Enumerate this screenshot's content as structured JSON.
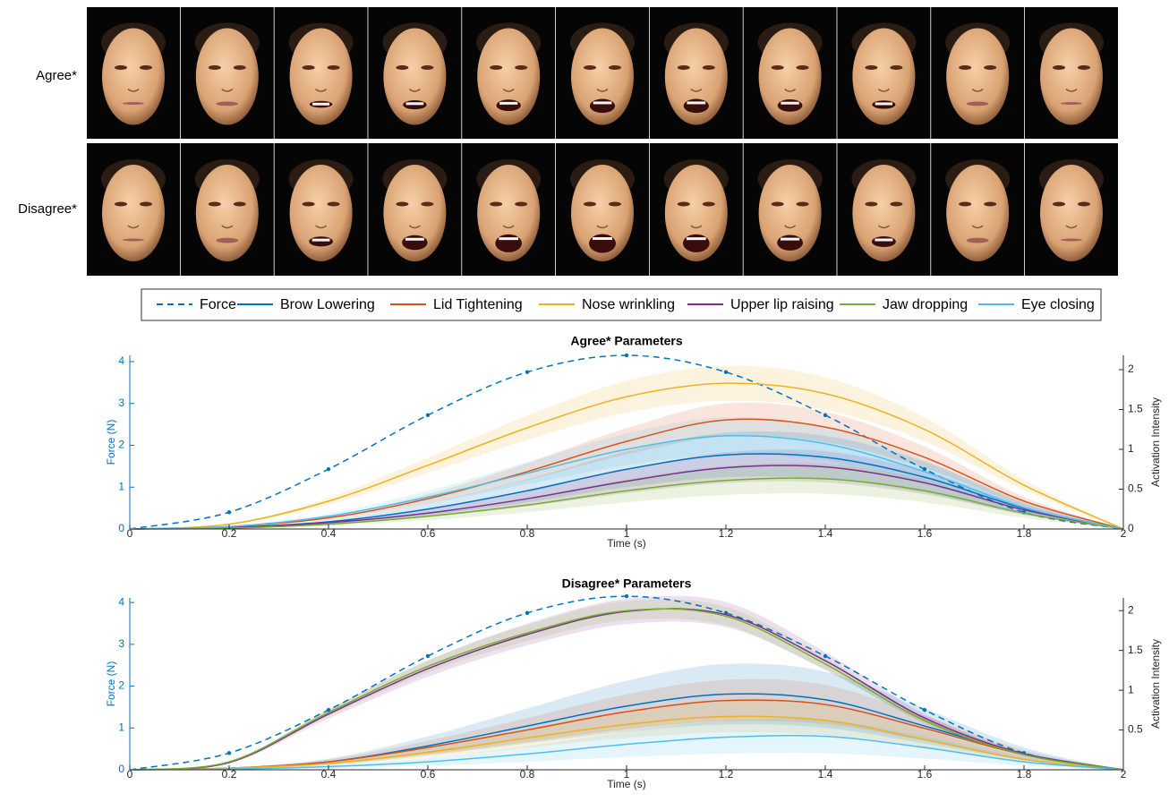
{
  "figure": {
    "row_labels": [
      "Agree*",
      "Disagree*"
    ]
  },
  "chart_data": [
    {
      "type": "line",
      "title": "Agree* Parameters",
      "xlabel": "Time (s)",
      "ylabel": "Force (N)",
      "y2label": "Activation Intensity",
      "x": [
        0,
        0.2,
        0.4,
        0.6,
        0.8,
        1,
        1.2,
        1.4,
        1.6,
        1.8,
        2
      ],
      "xlim": [
        0,
        2
      ],
      "xticks": [
        0,
        0.2,
        0.4,
        0.6,
        0.8,
        1,
        1.2,
        1.4,
        1.6,
        1.8,
        2
      ],
      "ylim": [
        0,
        4.15
      ],
      "yticks": [
        0,
        1,
        2,
        3,
        4
      ],
      "y2lim": [
        0,
        2.18
      ],
      "y2ticks": [
        0,
        0.5,
        1,
        1.5,
        2
      ],
      "series": [
        {
          "name": "Force",
          "color": "#0072BD",
          "style": "dashed",
          "values": [
            0,
            0.4,
            1.43,
            2.72,
            3.75,
            4.15,
            3.75,
            2.72,
            1.43,
            0.4,
            0
          ]
        },
        {
          "name": "Brow Lowering",
          "color": "#0072BD",
          "axis": "y2",
          "spread": 0.3,
          "values": [
            0,
            0.02,
            0.09,
            0.25,
            0.48,
            0.75,
            0.93,
            0.9,
            0.65,
            0.26,
            0
          ]
        },
        {
          "name": "Lid Tightening",
          "color": "#D95319",
          "axis": "y2",
          "spread": 0.15,
          "values": [
            0,
            0.03,
            0.14,
            0.38,
            0.72,
            1.1,
            1.37,
            1.28,
            0.9,
            0.35,
            0
          ]
        },
        {
          "name": "Nose wrinkling",
          "color": "#EDB120",
          "axis": "y2",
          "spread": 0.12,
          "values": [
            0,
            0.06,
            0.35,
            0.8,
            1.27,
            1.66,
            1.83,
            1.7,
            1.25,
            0.55,
            0
          ]
        },
        {
          "name": "Upper lip raising",
          "color": "#7E2F8E",
          "axis": "y2",
          "spread": 0.25,
          "values": [
            0,
            0.02,
            0.08,
            0.2,
            0.38,
            0.6,
            0.77,
            0.78,
            0.58,
            0.24,
            0
          ]
        },
        {
          "name": "Jaw dropping",
          "color": "#77AC30",
          "axis": "y2",
          "spread": 0.3,
          "values": [
            0,
            0.01,
            0.06,
            0.16,
            0.3,
            0.48,
            0.61,
            0.63,
            0.48,
            0.2,
            0
          ]
        },
        {
          "name": "Eye closing",
          "color": "#4DBEEE",
          "axis": "y2",
          "spread": 0.2,
          "values": [
            0,
            0.03,
            0.16,
            0.4,
            0.7,
            1.0,
            1.17,
            1.07,
            0.72,
            0.27,
            0
          ]
        }
      ]
    },
    {
      "type": "line",
      "title": "Disagree* Parameters",
      "xlabel": "Time (s)",
      "ylabel": "Force (N)",
      "y2label": "Activation Intensity",
      "x": [
        0,
        0.2,
        0.4,
        0.6,
        0.8,
        1,
        1.2,
        1.4,
        1.6,
        1.8,
        2
      ],
      "xlim": [
        0,
        2
      ],
      "xticks": [
        0,
        0.2,
        0.4,
        0.6,
        0.8,
        1,
        1.2,
        1.4,
        1.6,
        1.8,
        2
      ],
      "ylim": [
        0,
        4.11
      ],
      "yticks": [
        0,
        1,
        2,
        3,
        4
      ],
      "y2lim": [
        0,
        2.16
      ],
      "y2ticks": [
        0.5,
        1,
        1.5,
        2
      ],
      "series": [
        {
          "color": "#0072BD",
          "style": "dashed",
          "values": [
            0,
            0.4,
            1.43,
            2.72,
            3.75,
            4.15,
            3.75,
            2.72,
            1.43,
            0.4,
            0
          ]
        },
        {
          "color": "#0072BD",
          "axis": "y2",
          "spread": 0.4,
          "values": [
            0,
            0.02,
            0.1,
            0.3,
            0.55,
            0.8,
            0.95,
            0.88,
            0.55,
            0.2,
            0
          ]
        },
        {
          "color": "#D95319",
          "axis": "y2",
          "spread": 0.3,
          "values": [
            0,
            0.02,
            0.1,
            0.28,
            0.5,
            0.73,
            0.87,
            0.82,
            0.52,
            0.19,
            0
          ]
        },
        {
          "color": "#EDB120",
          "axis": "y2",
          "spread": 0.3,
          "values": [
            0,
            0.02,
            0.08,
            0.22,
            0.4,
            0.57,
            0.67,
            0.62,
            0.38,
            0.13,
            0
          ]
        },
        {
          "color": "#7E2F8E",
          "axis": "y2",
          "spread": 0.08,
          "values": [
            0,
            0.09,
            0.7,
            1.27,
            1.7,
            1.99,
            1.95,
            1.37,
            0.65,
            0.2,
            0
          ]
        },
        {
          "color": "#77AC30",
          "axis": "y2",
          "spread": 0.06,
          "values": [
            0,
            0.1,
            0.72,
            1.3,
            1.72,
            2.0,
            1.93,
            1.33,
            0.62,
            0.19,
            0
          ]
        },
        {
          "color": "#4DBEEE",
          "axis": "y2",
          "spread": 0.5,
          "values": [
            0,
            0.01,
            0.04,
            0.1,
            0.2,
            0.32,
            0.41,
            0.42,
            0.28,
            0.1,
            0
          ]
        }
      ]
    }
  ]
}
